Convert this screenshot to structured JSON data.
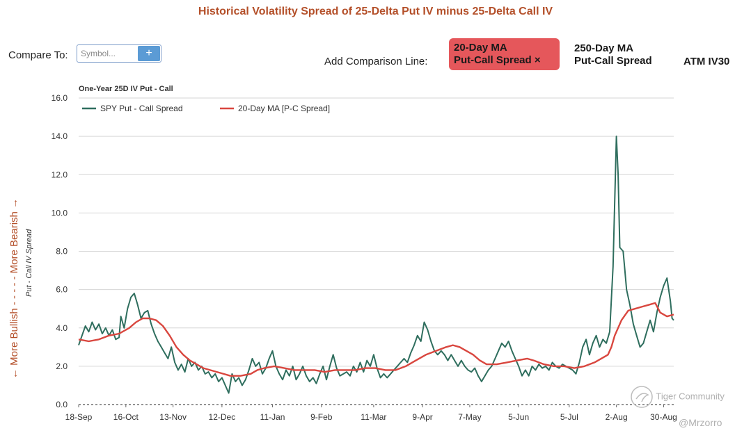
{
  "title": "Historical Volatility Spread of 25-Delta Put IV minus 25-Delta Call IV",
  "controls": {
    "compare_label": "Compare To:",
    "symbol_placeholder": "Symbol...",
    "add_icon": "plus-icon",
    "add_comparison_label": "Add Comparison Line:",
    "options": [
      {
        "line1": "20-Day MA",
        "line2": "Put-Call Spread",
        "close": "×",
        "active": true
      },
      {
        "line1": "250-Day MA",
        "line2": "Put-Call Spread",
        "active": false
      },
      {
        "line1": "ATM IV30",
        "active": false
      }
    ],
    "active_color": "#e5575b"
  },
  "chart_data": {
    "type": "line",
    "title": "One-Year 25D IV Put - Call",
    "ylabel": "Put - Call IV Spread",
    "ylabel_side": "←  More Bullish  - - - - -  More Bearish  →",
    "ylim": [
      0,
      16
    ],
    "yticks": [
      "0.0",
      "2.0",
      "4.0",
      "6.0",
      "8.0",
      "10.0",
      "12.0",
      "14.0",
      "16.0"
    ],
    "x_range": [
      0,
      353
    ],
    "xticks": [
      {
        "label": "18-Sep",
        "x": 0
      },
      {
        "label": "16-Oct",
        "x": 28
      },
      {
        "label": "13-Nov",
        "x": 56
      },
      {
        "label": "12-Dec",
        "x": 85
      },
      {
        "label": "11-Jan",
        "x": 115
      },
      {
        "label": "9-Feb",
        "x": 144
      },
      {
        "label": "11-Mar",
        "x": 175
      },
      {
        "label": "9-Apr",
        "x": 204
      },
      {
        "label": "7-May",
        "x": 232
      },
      {
        "label": "5-Jun",
        "x": 261
      },
      {
        "label": "5-Jul",
        "x": 291
      },
      {
        "label": "2-Aug",
        "x": 319
      },
      {
        "label": "30-Aug",
        "x": 347
      }
    ],
    "grid": true,
    "legend_position": "top-left",
    "series": [
      {
        "name": "SPY Put - Call Spread",
        "color": "#2f6e5e",
        "points": [
          [
            0,
            3.1
          ],
          [
            2,
            3.6
          ],
          [
            4,
            4.1
          ],
          [
            6,
            3.8
          ],
          [
            8,
            4.3
          ],
          [
            10,
            3.9
          ],
          [
            12,
            4.2
          ],
          [
            14,
            3.7
          ],
          [
            16,
            4.0
          ],
          [
            18,
            3.6
          ],
          [
            20,
            3.9
          ],
          [
            22,
            3.4
          ],
          [
            24,
            3.5
          ],
          [
            25,
            4.6
          ],
          [
            27,
            4.0
          ],
          [
            29,
            5.0
          ],
          [
            31,
            5.6
          ],
          [
            33,
            5.8
          ],
          [
            35,
            5.2
          ],
          [
            37,
            4.5
          ],
          [
            39,
            4.8
          ],
          [
            41,
            4.9
          ],
          [
            43,
            4.2
          ],
          [
            45,
            3.7
          ],
          [
            47,
            3.3
          ],
          [
            49,
            3.0
          ],
          [
            51,
            2.7
          ],
          [
            53,
            2.4
          ],
          [
            55,
            3.0
          ],
          [
            57,
            2.2
          ],
          [
            59,
            1.8
          ],
          [
            61,
            2.1
          ],
          [
            63,
            1.7
          ],
          [
            65,
            2.4
          ],
          [
            67,
            2.0
          ],
          [
            69,
            2.2
          ],
          [
            71,
            1.8
          ],
          [
            73,
            2.0
          ],
          [
            75,
            1.6
          ],
          [
            77,
            1.7
          ],
          [
            79,
            1.4
          ],
          [
            81,
            1.6
          ],
          [
            83,
            1.2
          ],
          [
            85,
            1.4
          ],
          [
            87,
            1.0
          ],
          [
            89,
            0.6
          ],
          [
            91,
            1.6
          ],
          [
            93,
            1.2
          ],
          [
            95,
            1.4
          ],
          [
            97,
            1.0
          ],
          [
            99,
            1.3
          ],
          [
            101,
            1.8
          ],
          [
            103,
            2.4
          ],
          [
            105,
            2.0
          ],
          [
            107,
            2.2
          ],
          [
            109,
            1.6
          ],
          [
            111,
            1.9
          ],
          [
            113,
            2.4
          ],
          [
            115,
            2.8
          ],
          [
            117,
            2.0
          ],
          [
            119,
            1.6
          ],
          [
            121,
            1.3
          ],
          [
            123,
            1.8
          ],
          [
            125,
            1.5
          ],
          [
            127,
            2.0
          ],
          [
            129,
            1.3
          ],
          [
            131,
            1.6
          ],
          [
            133,
            2.0
          ],
          [
            135,
            1.5
          ],
          [
            137,
            1.2
          ],
          [
            139,
            1.4
          ],
          [
            141,
            1.1
          ],
          [
            143,
            1.6
          ],
          [
            145,
            2.0
          ],
          [
            147,
            1.3
          ],
          [
            149,
            2.0
          ],
          [
            151,
            2.6
          ],
          [
            153,
            1.9
          ],
          [
            155,
            1.5
          ],
          [
            157,
            1.6
          ],
          [
            159,
            1.7
          ],
          [
            161,
            1.5
          ],
          [
            163,
            2.0
          ],
          [
            165,
            1.7
          ],
          [
            167,
            2.2
          ],
          [
            169,
            1.7
          ],
          [
            171,
            2.3
          ],
          [
            173,
            2.0
          ],
          [
            175,
            2.6
          ],
          [
            177,
            1.9
          ],
          [
            179,
            1.4
          ],
          [
            181,
            1.6
          ],
          [
            183,
            1.4
          ],
          [
            185,
            1.6
          ],
          [
            187,
            1.8
          ],
          [
            189,
            2.0
          ],
          [
            191,
            2.2
          ],
          [
            193,
            2.4
          ],
          [
            195,
            2.2
          ],
          [
            197,
            2.7
          ],
          [
            199,
            3.1
          ],
          [
            201,
            3.6
          ],
          [
            203,
            3.3
          ],
          [
            205,
            4.3
          ],
          [
            207,
            3.9
          ],
          [
            209,
            3.3
          ],
          [
            211,
            2.8
          ],
          [
            213,
            2.6
          ],
          [
            215,
            2.8
          ],
          [
            217,
            2.6
          ],
          [
            219,
            2.3
          ],
          [
            221,
            2.6
          ],
          [
            223,
            2.3
          ],
          [
            225,
            2.0
          ],
          [
            227,
            2.3
          ],
          [
            229,
            2.0
          ],
          [
            231,
            1.8
          ],
          [
            233,
            1.7
          ],
          [
            235,
            1.9
          ],
          [
            237,
            1.5
          ],
          [
            239,
            1.2
          ],
          [
            241,
            1.5
          ],
          [
            243,
            1.8
          ],
          [
            245,
            2.0
          ],
          [
            247,
            2.4
          ],
          [
            249,
            2.8
          ],
          [
            251,
            3.2
          ],
          [
            253,
            3.0
          ],
          [
            255,
            3.3
          ],
          [
            257,
            2.8
          ],
          [
            259,
            2.4
          ],
          [
            261,
            2.0
          ],
          [
            263,
            1.5
          ],
          [
            265,
            1.8
          ],
          [
            267,
            1.5
          ],
          [
            269,
            2.0
          ],
          [
            271,
            1.8
          ],
          [
            273,
            2.1
          ],
          [
            275,
            1.9
          ],
          [
            277,
            2.0
          ],
          [
            279,
            1.8
          ],
          [
            281,
            2.2
          ],
          [
            283,
            2.0
          ],
          [
            285,
            1.9
          ],
          [
            287,
            2.1
          ],
          [
            289,
            2.0
          ],
          [
            291,
            1.9
          ],
          [
            293,
            1.8
          ],
          [
            295,
            1.6
          ],
          [
            297,
            2.2
          ],
          [
            299,
            3.0
          ],
          [
            301,
            3.4
          ],
          [
            303,
            2.6
          ],
          [
            305,
            3.2
          ],
          [
            307,
            3.6
          ],
          [
            309,
            3.0
          ],
          [
            311,
            3.4
          ],
          [
            313,
            3.2
          ],
          [
            315,
            3.8
          ],
          [
            317,
            7.2
          ],
          [
            319,
            14.0
          ],
          [
            320,
            12.0
          ],
          [
            321,
            8.2
          ],
          [
            323,
            8.0
          ],
          [
            324,
            7.0
          ],
          [
            325,
            6.0
          ],
          [
            327,
            5.2
          ],
          [
            329,
            4.2
          ],
          [
            331,
            3.6
          ],
          [
            333,
            3.0
          ],
          [
            335,
            3.2
          ],
          [
            337,
            3.8
          ],
          [
            339,
            4.4
          ],
          [
            341,
            3.8
          ],
          [
            343,
            4.8
          ],
          [
            345,
            5.6
          ],
          [
            347,
            6.2
          ],
          [
            349,
            6.6
          ],
          [
            351,
            5.4
          ],
          [
            352,
            4.5
          ],
          [
            353,
            4.4
          ]
        ]
      },
      {
        "name": "20-Day MA [P-C Spread]",
        "color": "#d9473f",
        "points": [
          [
            0,
            3.4
          ],
          [
            6,
            3.3
          ],
          [
            12,
            3.4
          ],
          [
            18,
            3.6
          ],
          [
            24,
            3.7
          ],
          [
            30,
            4.0
          ],
          [
            34,
            4.3
          ],
          [
            38,
            4.5
          ],
          [
            42,
            4.5
          ],
          [
            46,
            4.4
          ],
          [
            50,
            4.1
          ],
          [
            54,
            3.6
          ],
          [
            58,
            3.0
          ],
          [
            62,
            2.6
          ],
          [
            66,
            2.3
          ],
          [
            70,
            2.1
          ],
          [
            74,
            1.9
          ],
          [
            78,
            1.8
          ],
          [
            82,
            1.7
          ],
          [
            86,
            1.6
          ],
          [
            90,
            1.5
          ],
          [
            96,
            1.5
          ],
          [
            102,
            1.6
          ],
          [
            106,
            1.8
          ],
          [
            110,
            1.9
          ],
          [
            116,
            2.0
          ],
          [
            122,
            1.9
          ],
          [
            128,
            1.8
          ],
          [
            134,
            1.8
          ],
          [
            140,
            1.8
          ],
          [
            146,
            1.7
          ],
          [
            152,
            1.8
          ],
          [
            158,
            1.8
          ],
          [
            164,
            1.8
          ],
          [
            170,
            1.9
          ],
          [
            176,
            1.9
          ],
          [
            182,
            1.8
          ],
          [
            188,
            1.8
          ],
          [
            194,
            2.0
          ],
          [
            200,
            2.3
          ],
          [
            206,
            2.6
          ],
          [
            212,
            2.8
          ],
          [
            218,
            3.0
          ],
          [
            222,
            3.1
          ],
          [
            226,
            3.0
          ],
          [
            230,
            2.8
          ],
          [
            234,
            2.6
          ],
          [
            238,
            2.3
          ],
          [
            242,
            2.1
          ],
          [
            248,
            2.1
          ],
          [
            254,
            2.2
          ],
          [
            260,
            2.3
          ],
          [
            266,
            2.4
          ],
          [
            270,
            2.3
          ],
          [
            276,
            2.1
          ],
          [
            282,
            2.0
          ],
          [
            288,
            2.0
          ],
          [
            294,
            1.9
          ],
          [
            300,
            2.0
          ],
          [
            306,
            2.2
          ],
          [
            310,
            2.4
          ],
          [
            314,
            2.6
          ],
          [
            316,
            3.0
          ],
          [
            318,
            3.6
          ],
          [
            322,
            4.4
          ],
          [
            326,
            4.9
          ],
          [
            330,
            5.0
          ],
          [
            334,
            5.1
          ],
          [
            338,
            5.2
          ],
          [
            342,
            5.3
          ],
          [
            345,
            4.8
          ],
          [
            349,
            4.6
          ],
          [
            353,
            4.7
          ]
        ]
      }
    ]
  },
  "watermark": {
    "icon": "tiger-logo-icon",
    "brand": "Tiger Community",
    "handle": "@Mrzorro"
  }
}
